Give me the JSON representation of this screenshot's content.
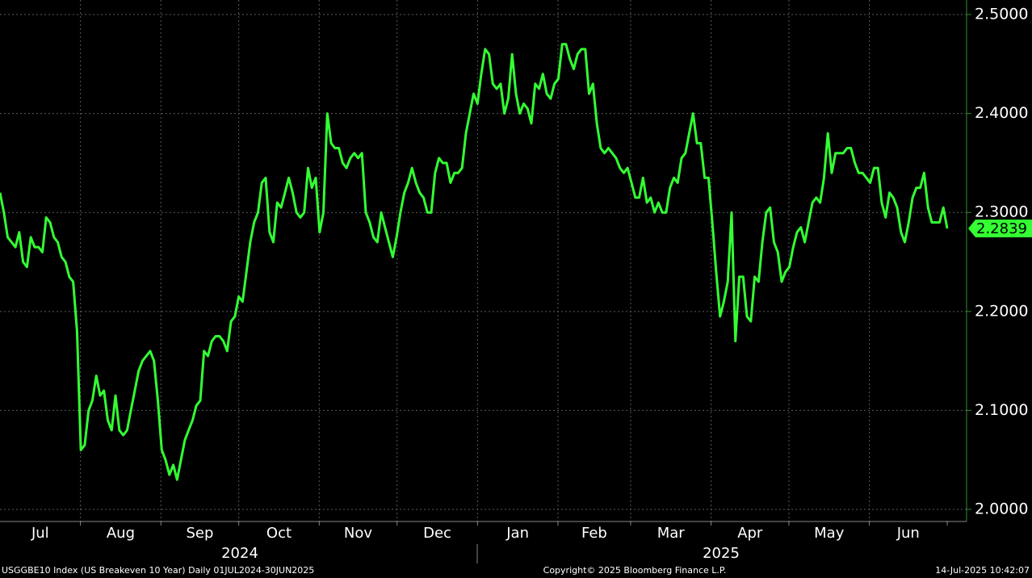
{
  "chart_data": {
    "type": "line",
    "title": "USGGBE10 Index (US Breakeven 10 Year)  Daily 01JUL2024-30JUN2025",
    "copyright": "Copyright© 2025 Bloomberg Finance L.P.",
    "timestamp": "14-Jul-2025 10:42:07",
    "months": [
      "Jul",
      "Aug",
      "Sep",
      "Oct",
      "Nov",
      "Dec",
      "Jan",
      "Feb",
      "Mar",
      "Apr",
      "May",
      "Jun"
    ],
    "years": [
      "2024",
      "2025"
    ],
    "ylim": [
      1.9886,
      2.5147
    ],
    "yticks": [
      {
        "value": 2.0,
        "label": "2.0000"
      },
      {
        "value": 2.1,
        "label": "2.1000"
      },
      {
        "value": 2.2,
        "label": "2.2000"
      },
      {
        "value": 2.3,
        "label": "2.3000"
      },
      {
        "value": 2.4,
        "label": "2.4000"
      },
      {
        "value": 2.5,
        "label": "2.5000"
      }
    ],
    "grid": true,
    "series": [
      {
        "name": "USGGBE10 Index",
        "color": "#33ff33",
        "values": [
          2.32,
          2.3,
          2.275,
          2.27,
          2.265,
          2.28,
          2.25,
          2.245,
          2.275,
          2.265,
          2.265,
          2.26,
          2.295,
          2.29,
          2.275,
          2.27,
          2.255,
          2.25,
          2.235,
          2.23,
          2.18,
          2.06,
          2.065,
          2.1,
          2.11,
          2.135,
          2.115,
          2.12,
          2.09,
          2.08,
          2.115,
          2.08,
          2.075,
          2.08,
          2.1,
          2.12,
          2.14,
          2.15,
          2.155,
          2.16,
          2.15,
          2.11,
          2.06,
          2.05,
          2.035,
          2.045,
          2.03,
          2.05,
          2.07,
          2.08,
          2.09,
          2.105,
          2.11,
          2.16,
          2.155,
          2.17,
          2.175,
          2.175,
          2.17,
          2.16,
          2.19,
          2.195,
          2.215,
          2.21,
          2.24,
          2.27,
          2.29,
          2.3,
          2.33,
          2.335,
          2.28,
          2.27,
          2.31,
          2.305,
          2.32,
          2.335,
          2.32,
          2.3,
          2.295,
          2.3,
          2.345,
          2.325,
          2.335,
          2.28,
          2.3,
          2.4,
          2.37,
          2.365,
          2.365,
          2.35,
          2.345,
          2.355,
          2.36,
          2.355,
          2.36,
          2.3,
          2.29,
          2.275,
          2.27,
          2.3,
          2.285,
          2.27,
          2.255,
          2.275,
          2.3,
          2.32,
          2.33,
          2.345,
          2.33,
          2.32,
          2.315,
          2.3,
          2.3,
          2.34,
          2.355,
          2.35,
          2.35,
          2.33,
          2.34,
          2.34,
          2.345,
          2.38,
          2.4,
          2.42,
          2.41,
          2.44,
          2.465,
          2.46,
          2.43,
          2.425,
          2.43,
          2.4,
          2.415,
          2.46,
          2.42,
          2.4,
          2.41,
          2.405,
          2.39,
          2.43,
          2.425,
          2.44,
          2.42,
          2.415,
          2.43,
          2.435,
          2.47,
          2.47,
          2.455,
          2.445,
          2.46,
          2.465,
          2.465,
          2.42,
          2.43,
          2.39,
          2.365,
          2.36,
          2.365,
          2.36,
          2.355,
          2.345,
          2.34,
          2.345,
          2.33,
          2.315,
          2.315,
          2.335,
          2.31,
          2.315,
          2.3,
          2.31,
          2.3,
          2.3,
          2.325,
          2.335,
          2.33,
          2.355,
          2.36,
          2.38,
          2.4,
          2.37,
          2.37,
          2.335,
          2.335,
          2.29,
          2.24,
          2.195,
          2.21,
          2.23,
          2.3,
          2.17,
          2.235,
          2.235,
          2.195,
          2.19,
          2.235,
          2.23,
          2.27,
          2.3,
          2.305,
          2.27,
          2.26,
          2.23,
          2.24,
          2.245,
          2.265,
          2.28,
          2.285,
          2.27,
          2.29,
          2.31,
          2.315,
          2.31,
          2.335,
          2.38,
          2.34,
          2.36,
          2.36,
          2.36,
          2.365,
          2.365,
          2.35,
          2.34,
          2.34,
          2.335,
          2.33,
          2.345,
          2.345,
          2.31,
          2.295,
          2.32,
          2.315,
          2.305,
          2.28,
          2.27,
          2.29,
          2.315,
          2.325,
          2.325,
          2.34,
          2.305,
          2.29,
          2.29,
          2.29,
          2.305,
          2.2839
        ]
      }
    ]
  }
}
